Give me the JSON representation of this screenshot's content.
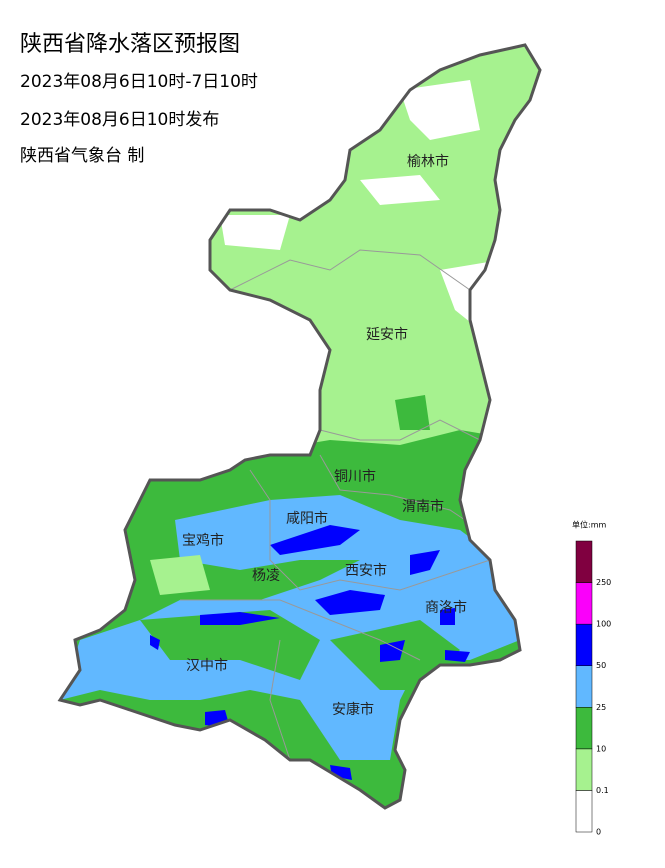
{
  "header": {
    "title": "陕西省降水落区预报图",
    "period": "2023年08月6日10时-7日10时",
    "issued": "2023年08月6日10时发布",
    "agency": "陕西省气象台 制"
  },
  "cities": [
    {
      "label": "榆林市"
    },
    {
      "label": "延安市"
    },
    {
      "label": "铜川市"
    },
    {
      "label": "咸阳市"
    },
    {
      "label": "渭南市"
    },
    {
      "label": "宝鸡市"
    },
    {
      "label": "杨凌"
    },
    {
      "label": "西安市"
    },
    {
      "label": "商洛市"
    },
    {
      "label": "汉中市"
    },
    {
      "label": "安康市"
    }
  ],
  "legend": {
    "unit": "单位:mm",
    "ticks": [
      0,
      0.1,
      10,
      25,
      50,
      100,
      250
    ],
    "colors": [
      "#ffffff",
      "#a6f28f",
      "#3dba3d",
      "#61b8ff",
      "#0000fe",
      "#fa00fa",
      "#800040"
    ]
  }
}
